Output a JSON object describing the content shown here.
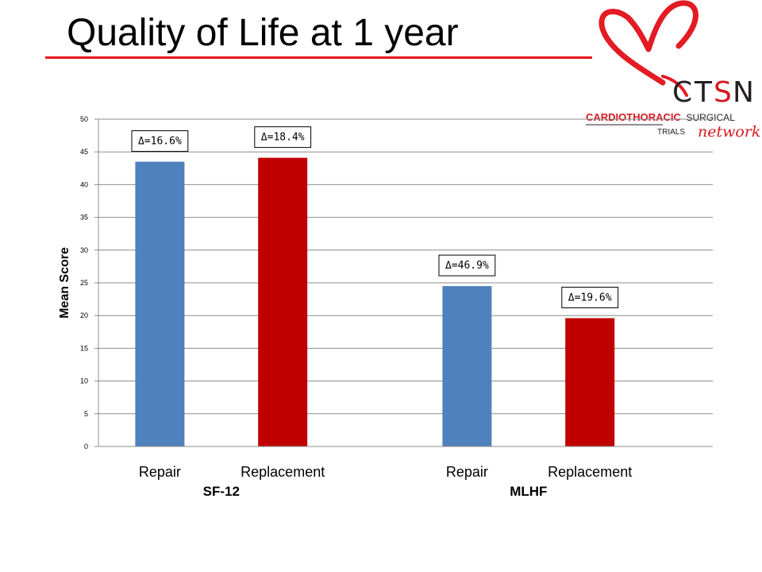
{
  "title": "Quality of Life at 1 year",
  "logo": {
    "letters": [
      "C",
      "T",
      "S",
      "N"
    ],
    "line1_bold": "CARDIOTHORACIC",
    "line1_rest": "SURGICAL",
    "line2_left": "TRIALS",
    "line2_right": "network",
    "colors": {
      "heart": "#e31b23",
      "dark": "#231f20",
      "red": "#d71920"
    }
  },
  "chart_data": {
    "type": "bar",
    "ylabel": "Mean Score",
    "ylim": [
      0,
      50
    ],
    "yticks": [
      0,
      5,
      10,
      15,
      20,
      25,
      30,
      35,
      40,
      45,
      50
    ],
    "grid": true,
    "groups": [
      {
        "label": "SF-12",
        "bars": [
          {
            "category": "Repair",
            "value": 43.5,
            "color": "#4f81bd",
            "annotation": "Δ=16.6%"
          },
          {
            "category": "Replacement",
            "value": 44.1,
            "color": "#c00000",
            "annotation": "Δ=18.4%"
          }
        ]
      },
      {
        "label": "MLHF",
        "bars": [
          {
            "category": "Repair",
            "value": 24.5,
            "color": "#4f81bd",
            "annotation": "Δ=46.9%"
          },
          {
            "category": "Replacement",
            "value": 19.6,
            "color": "#c00000",
            "annotation": "Δ=19.6%"
          }
        ]
      }
    ]
  }
}
